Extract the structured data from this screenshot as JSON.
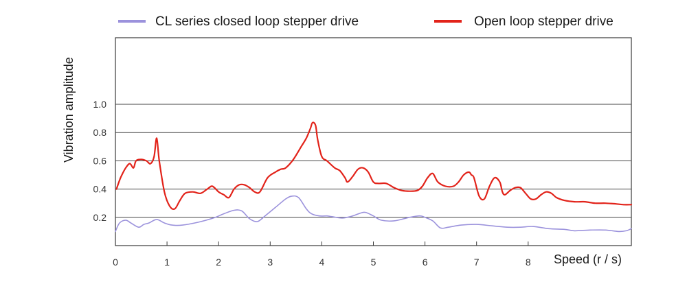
{
  "chart_data": {
    "type": "line",
    "title": "",
    "xlabel": "Speed (r / s)",
    "ylabel": "Vibration amplitude",
    "xlim": [
      0,
      10
    ],
    "ylim": [
      0,
      1.5
    ],
    "x_ticks": [
      "0",
      "1",
      "2",
      "3",
      "4",
      "5",
      "6",
      "7",
      "8"
    ],
    "y_ticks": [
      "0.2",
      "0.4",
      "0.6",
      "0.8",
      "1.0"
    ],
    "grid": "horizontal",
    "legend_position": "top",
    "series": [
      {
        "name": "CL series closed loop stepper drive",
        "color": "#9b92dc",
        "x": [
          0,
          0.08,
          0.2,
          0.3,
          0.45,
          0.55,
          0.65,
          0.8,
          0.95,
          1.1,
          1.3,
          1.6,
          1.9,
          2.1,
          2.3,
          2.45,
          2.6,
          2.75,
          2.9,
          3.1,
          3.3,
          3.42,
          3.55,
          3.7,
          3.8,
          3.95,
          4.1,
          4.2,
          4.4,
          4.6,
          4.75,
          4.85,
          5.0,
          5.15,
          5.4,
          5.7,
          5.9,
          6.0,
          6.15,
          6.3,
          6.45,
          6.7,
          7.0,
          7.3,
          7.6,
          7.85,
          8.1,
          8.4,
          8.7,
          8.9,
          9.2,
          9.5,
          9.75,
          9.9,
          10.0
        ],
        "values": [
          0.1,
          0.16,
          0.18,
          0.16,
          0.13,
          0.15,
          0.16,
          0.185,
          0.16,
          0.145,
          0.145,
          0.165,
          0.195,
          0.225,
          0.25,
          0.245,
          0.19,
          0.17,
          0.21,
          0.27,
          0.33,
          0.35,
          0.34,
          0.26,
          0.225,
          0.21,
          0.21,
          0.205,
          0.195,
          0.21,
          0.23,
          0.235,
          0.21,
          0.18,
          0.175,
          0.2,
          0.21,
          0.2,
          0.175,
          0.125,
          0.13,
          0.145,
          0.15,
          0.14,
          0.13,
          0.13,
          0.135,
          0.12,
          0.115,
          0.105,
          0.11,
          0.11,
          0.1,
          0.105,
          0.12
        ]
      },
      {
        "name": "Open loop stepper drive",
        "color": "#e2231a",
        "x": [
          0.02,
          0.1,
          0.2,
          0.28,
          0.35,
          0.4,
          0.5,
          0.6,
          0.68,
          0.75,
          0.8,
          0.85,
          0.95,
          1.05,
          1.15,
          1.25,
          1.35,
          1.5,
          1.65,
          1.78,
          1.88,
          2.0,
          2.1,
          2.2,
          2.3,
          2.4,
          2.5,
          2.6,
          2.7,
          2.8,
          2.95,
          3.1,
          3.2,
          3.3,
          3.45,
          3.6,
          3.7,
          3.78,
          3.82,
          3.88,
          3.92,
          4.0,
          4.1,
          4.25,
          4.35,
          4.45,
          4.5,
          4.6,
          4.7,
          4.8,
          4.9,
          5.0,
          5.1,
          5.25,
          5.4,
          5.55,
          5.7,
          5.85,
          5.95,
          6.05,
          6.15,
          6.25,
          6.4,
          6.55,
          6.65,
          6.75,
          6.85,
          6.9,
          6.95,
          7.05,
          7.15,
          7.25,
          7.35,
          7.45,
          7.5,
          7.55,
          7.65,
          7.75,
          7.85,
          7.95,
          8.05,
          8.15,
          8.25,
          8.35,
          8.45,
          8.55,
          8.7,
          8.9,
          9.1,
          9.3,
          9.5,
          9.7,
          9.85,
          10.0
        ],
        "values": [
          0.4,
          0.48,
          0.55,
          0.58,
          0.55,
          0.6,
          0.61,
          0.6,
          0.58,
          0.63,
          0.76,
          0.6,
          0.38,
          0.28,
          0.26,
          0.32,
          0.37,
          0.38,
          0.37,
          0.4,
          0.42,
          0.38,
          0.36,
          0.34,
          0.4,
          0.43,
          0.43,
          0.41,
          0.38,
          0.38,
          0.48,
          0.52,
          0.54,
          0.55,
          0.61,
          0.7,
          0.76,
          0.83,
          0.87,
          0.85,
          0.75,
          0.63,
          0.6,
          0.55,
          0.53,
          0.48,
          0.45,
          0.49,
          0.54,
          0.55,
          0.52,
          0.45,
          0.44,
          0.44,
          0.41,
          0.39,
          0.385,
          0.39,
          0.42,
          0.48,
          0.51,
          0.45,
          0.42,
          0.42,
          0.45,
          0.5,
          0.52,
          0.5,
          0.48,
          0.35,
          0.33,
          0.42,
          0.48,
          0.45,
          0.38,
          0.36,
          0.39,
          0.41,
          0.41,
          0.37,
          0.33,
          0.33,
          0.36,
          0.38,
          0.37,
          0.34,
          0.32,
          0.31,
          0.31,
          0.3,
          0.3,
          0.295,
          0.29,
          0.29
        ]
      }
    ]
  }
}
